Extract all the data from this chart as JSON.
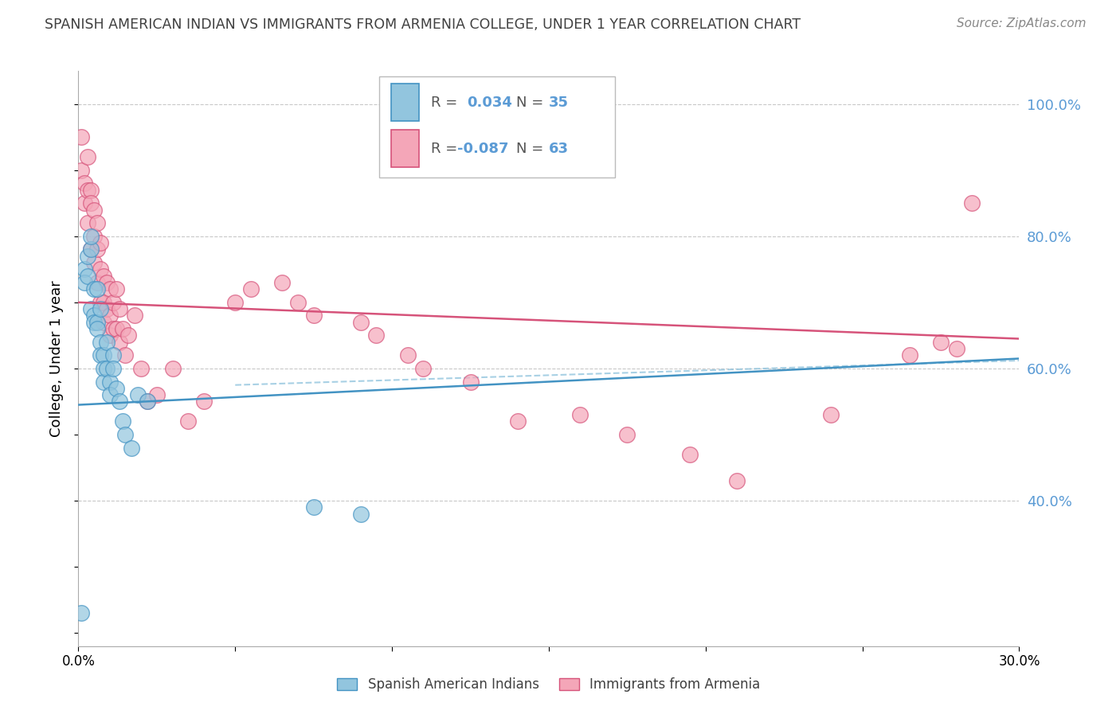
{
  "title": "SPANISH AMERICAN INDIAN VS IMMIGRANTS FROM ARMENIA COLLEGE, UNDER 1 YEAR CORRELATION CHART",
  "source": "Source: ZipAtlas.com",
  "ylabel": "College, Under 1 year",
  "xlim": [
    0.0,
    0.3
  ],
  "ylim": [
    0.18,
    1.05
  ],
  "xticks": [
    0.0,
    0.05,
    0.1,
    0.15,
    0.2,
    0.25,
    0.3
  ],
  "xticklabels": [
    "0.0%",
    "",
    "",
    "",
    "",
    "",
    "30.0%"
  ],
  "yticks_right": [
    0.4,
    0.6,
    0.8,
    1.0
  ],
  "ytick_labels_right": [
    "40.0%",
    "60.0%",
    "80.0%",
    "100.0%"
  ],
  "blue_color": "#92c5de",
  "pink_color": "#f4a6b8",
  "trend_blue_color": "#4393c3",
  "trend_pink_color": "#d6537a",
  "dashed_line_color": "#92c5de",
  "axis_label_color": "#5b9bd5",
  "title_color": "#404040",
  "grid_color": "#c8c8c8",
  "blue_scatter_x": [
    0.001,
    0.002,
    0.002,
    0.003,
    0.003,
    0.004,
    0.004,
    0.004,
    0.005,
    0.005,
    0.005,
    0.006,
    0.006,
    0.006,
    0.007,
    0.007,
    0.007,
    0.008,
    0.008,
    0.008,
    0.009,
    0.009,
    0.01,
    0.01,
    0.011,
    0.011,
    0.012,
    0.013,
    0.014,
    0.015,
    0.017,
    0.019,
    0.022,
    0.075,
    0.09
  ],
  "blue_scatter_y": [
    0.23,
    0.75,
    0.73,
    0.77,
    0.74,
    0.78,
    0.8,
    0.69,
    0.72,
    0.68,
    0.67,
    0.72,
    0.67,
    0.66,
    0.69,
    0.64,
    0.62,
    0.62,
    0.6,
    0.58,
    0.64,
    0.6,
    0.58,
    0.56,
    0.62,
    0.6,
    0.57,
    0.55,
    0.52,
    0.5,
    0.48,
    0.56,
    0.55,
    0.39,
    0.38
  ],
  "pink_scatter_x": [
    0.001,
    0.001,
    0.002,
    0.002,
    0.003,
    0.003,
    0.003,
    0.004,
    0.004,
    0.004,
    0.005,
    0.005,
    0.005,
    0.006,
    0.006,
    0.006,
    0.007,
    0.007,
    0.007,
    0.008,
    0.008,
    0.008,
    0.009,
    0.009,
    0.01,
    0.01,
    0.01,
    0.011,
    0.011,
    0.012,
    0.012,
    0.013,
    0.013,
    0.014,
    0.015,
    0.016,
    0.018,
    0.02,
    0.022,
    0.025,
    0.03,
    0.035,
    0.04,
    0.05,
    0.055,
    0.065,
    0.07,
    0.075,
    0.09,
    0.095,
    0.105,
    0.11,
    0.125,
    0.14,
    0.16,
    0.175,
    0.195,
    0.21,
    0.24,
    0.265,
    0.275,
    0.28,
    0.285
  ],
  "pink_scatter_y": [
    0.95,
    0.9,
    0.88,
    0.85,
    0.92,
    0.87,
    0.82,
    0.87,
    0.85,
    0.78,
    0.84,
    0.8,
    0.76,
    0.82,
    0.78,
    0.73,
    0.79,
    0.75,
    0.7,
    0.74,
    0.7,
    0.67,
    0.73,
    0.69,
    0.72,
    0.68,
    0.65,
    0.7,
    0.66,
    0.72,
    0.66,
    0.69,
    0.64,
    0.66,
    0.62,
    0.65,
    0.68,
    0.6,
    0.55,
    0.56,
    0.6,
    0.52,
    0.55,
    0.7,
    0.72,
    0.73,
    0.7,
    0.68,
    0.67,
    0.65,
    0.62,
    0.6,
    0.58,
    0.52,
    0.53,
    0.5,
    0.47,
    0.43,
    0.53,
    0.62,
    0.64,
    0.63,
    0.85
  ],
  "blue_trend_x": [
    0.0,
    0.3
  ],
  "blue_trend_y": [
    0.545,
    0.615
  ],
  "pink_trend_x": [
    0.0,
    0.3
  ],
  "pink_trend_y": [
    0.7,
    0.645
  ],
  "dashed_trend_x": [
    0.05,
    0.3
  ],
  "dashed_trend_y": [
    0.575,
    0.612
  ],
  "background_color": "#ffffff"
}
